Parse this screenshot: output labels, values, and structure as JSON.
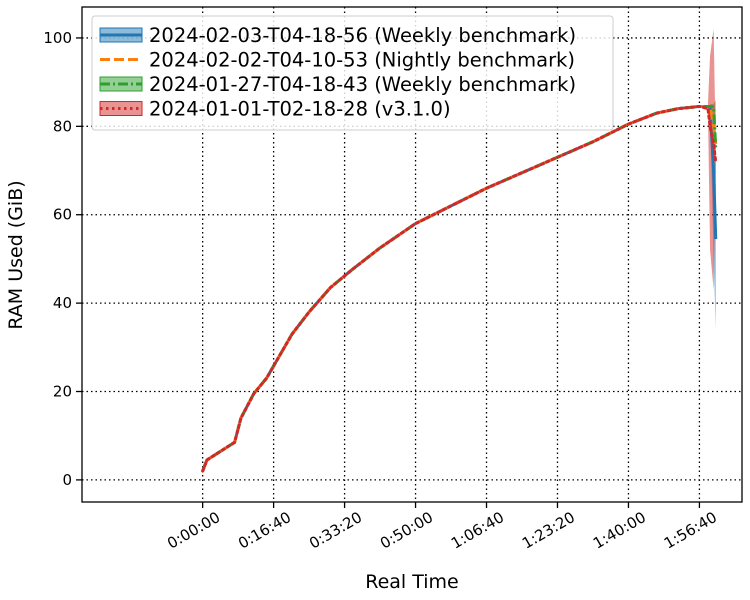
{
  "chart_data": {
    "type": "line",
    "title": "",
    "xlabel": "Real Time",
    "ylabel": "RAM Used (GiB)",
    "x_unit": "seconds",
    "xlim": [
      -1700,
      7600
    ],
    "ylim": [
      -5,
      107
    ],
    "x_ticks": [
      {
        "value": 0,
        "label": "0:00:00"
      },
      {
        "value": 1000,
        "label": "0:16:40"
      },
      {
        "value": 2000,
        "label": "0:33:20"
      },
      {
        "value": 3000,
        "label": "0:50:00"
      },
      {
        "value": 4000,
        "label": "1:06:40"
      },
      {
        "value": 5000,
        "label": "1:23:20"
      },
      {
        "value": 6000,
        "label": "1:40:00"
      },
      {
        "value": 7000,
        "label": "1:56:40"
      }
    ],
    "y_ticks": [
      0,
      20,
      40,
      60,
      80,
      100
    ],
    "grid": true,
    "grid_style": "dotted",
    "legend_position": "top-left",
    "series": [
      {
        "name": "2024-02-03-T04-18-56 (Weekly benchmark)",
        "color": "#1f77b4",
        "style": "solid",
        "x": [
          0,
          60,
          450,
          540,
          720,
          900,
          1080,
          1260,
          1500,
          1800,
          2100,
          2500,
          3000,
          3500,
          4000,
          4500,
          5000,
          5500,
          6000,
          6400,
          6700,
          7000,
          7150,
          7200,
          7230
        ],
        "y": [
          2,
          4.5,
          8.5,
          14,
          19.5,
          23,
          28,
          33,
          38,
          43.5,
          47.5,
          52.5,
          58,
          62,
          66,
          69.5,
          73,
          76.5,
          80.5,
          83,
          84,
          84.5,
          84.5,
          70,
          54.5
        ],
        "band": {
          "x": [
            7150,
            7200,
            7230
          ],
          "lower": [
            84,
            50,
            34
          ],
          "upper": [
            85,
            75,
            67
          ]
        }
      },
      {
        "name": "2024-02-02-T04-10-53 (Nightly benchmark)",
        "color": "#ff7f0e",
        "style": "dashed",
        "x": [
          0,
          60,
          450,
          540,
          720,
          900,
          1080,
          1260,
          1500,
          1800,
          2100,
          2500,
          3000,
          3500,
          4000,
          4500,
          5000,
          5500,
          6000,
          6400,
          6700,
          7000,
          7150,
          7200,
          7230
        ],
        "y": [
          2,
          4.5,
          8.5,
          14,
          19.5,
          23,
          28,
          33,
          38,
          43.5,
          47.5,
          52.5,
          58,
          62,
          66,
          69.5,
          73,
          76.5,
          80.5,
          83,
          84,
          84.5,
          84.5,
          80,
          76
        ]
      },
      {
        "name": "2024-01-27-T04-18-43 (Weekly benchmark)",
        "color": "#2ca02c",
        "style": "dashdot",
        "x": [
          0,
          60,
          450,
          540,
          720,
          900,
          1080,
          1260,
          1500,
          1800,
          2100,
          2500,
          3000,
          3500,
          4000,
          4500,
          5000,
          5500,
          6000,
          6400,
          6700,
          7000,
          7150,
          7200,
          7230
        ],
        "y": [
          2,
          4.5,
          8.5,
          14,
          19.5,
          23,
          28,
          33,
          38,
          43.5,
          47.5,
          52.5,
          58,
          62,
          66,
          69.5,
          73,
          76.5,
          80.5,
          83,
          84,
          84.5,
          84.5,
          84.5,
          75
        ],
        "band": {
          "x": [
            7150,
            7200,
            7230
          ],
          "lower": [
            84,
            82,
            64
          ],
          "upper": [
            85,
            85,
            86
          ]
        }
      },
      {
        "name": "2024-01-01-T02-18-28 (v3.1.0)",
        "color": "#d62728",
        "style": "dotted",
        "x": [
          0,
          60,
          450,
          540,
          720,
          900,
          1080,
          1260,
          1500,
          1800,
          2100,
          2500,
          3000,
          3500,
          4000,
          4500,
          5000,
          5500,
          6000,
          6400,
          6700,
          7000,
          7120,
          7150,
          7200,
          7230
        ],
        "y": [
          2,
          4.5,
          8.5,
          14,
          19.5,
          23,
          28,
          33,
          38,
          43.5,
          47.5,
          52.5,
          58,
          62,
          66,
          69.5,
          73,
          76.5,
          80.5,
          83,
          84,
          84.5,
          84,
          80,
          76,
          72
        ],
        "band": {
          "x": [
            7120,
            7150,
            7200,
            7230
          ],
          "lower": [
            84,
            52,
            43,
            70
          ],
          "upper": [
            85,
            96,
            102,
            76
          ]
        }
      }
    ]
  }
}
